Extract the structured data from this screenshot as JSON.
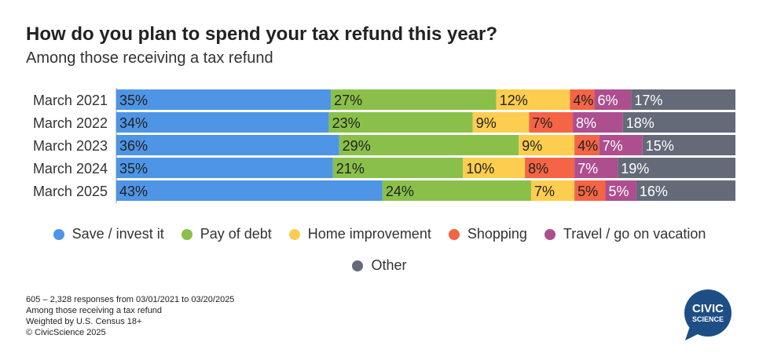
{
  "title": "How do you plan to spend your tax refund this year?",
  "subtitle": "Among those receiving a tax refund",
  "chart_data": {
    "type": "bar",
    "orientation": "horizontal",
    "stacked": true,
    "categories": [
      "March 2021",
      "March 2022",
      "March 2023",
      "March 2024",
      "March 2025"
    ],
    "series": [
      {
        "name": "Save / invest it",
        "color": "#4e95e5",
        "values": [
          35,
          34,
          36,
          35,
          43
        ]
      },
      {
        "name": "Pay of debt",
        "color": "#8ac04a",
        "values": [
          27,
          23,
          29,
          21,
          24
        ]
      },
      {
        "name": "Home improvement",
        "color": "#fccd4e",
        "values": [
          12,
          9,
          9,
          10,
          7
        ]
      },
      {
        "name": "Shopping",
        "color": "#f46445",
        "values": [
          4,
          7,
          4,
          8,
          5
        ]
      },
      {
        "name": "Travel / go on vacation",
        "color": "#ad4e8f",
        "values": [
          6,
          8,
          7,
          7,
          5
        ]
      },
      {
        "name": "Other",
        "color": "#646a78",
        "values": [
          17,
          18,
          15,
          19,
          16
        ]
      }
    ],
    "value_suffix": "%",
    "legend_position": "bottom",
    "grid": false
  },
  "footnotes": [
    "605 – 2,328 responses from 03/01/2021 to 03/20/2025",
    "Among those receiving a tax refund",
    "Weighted by U.S. Census 18+",
    "© CivicScience 2025"
  ],
  "logo": {
    "line1": "CIVIC",
    "line2": "SCIENCE",
    "color": "#1e4e86"
  }
}
